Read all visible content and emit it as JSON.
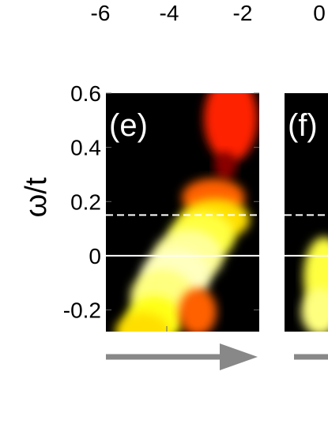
{
  "chart_data": [
    {
      "type": "heatmap",
      "panel_label": "(e)",
      "title": "",
      "xlabel": "",
      "ylabel": "ω/t",
      "x_ticks_top": [
        "-6",
        "-4",
        "-2"
      ],
      "y_ticks": [
        {
          "value": 0.6,
          "label": "0.6"
        },
        {
          "value": 0.4,
          "label": "0.4"
        },
        {
          "value": 0.2,
          "label": "0.2"
        },
        {
          "value": 0.0,
          "label": "0"
        },
        {
          "value": -0.2,
          "label": "-0.2"
        }
      ],
      "ylim": [
        -0.28,
        0.6
      ],
      "colormap": "hot",
      "reference_lines": [
        {
          "value": 0.15,
          "style": "dashed",
          "color": "#ffffff"
        },
        {
          "value": 0.0,
          "style": "solid",
          "color": "#ffffff"
        }
      ],
      "arrow": {
        "direction": "right",
        "color": "#888888"
      }
    },
    {
      "type": "heatmap",
      "panel_label": "(f)",
      "title": "",
      "x_ticks_top": [
        "0"
      ],
      "reference_lines": [
        {
          "value": 0.15,
          "style": "dashed",
          "color": "#ffffff"
        },
        {
          "value": 0.0,
          "style": "solid",
          "color": "#ffffff"
        }
      ],
      "arrow": {
        "direction": "right",
        "color": "#888888"
      }
    }
  ]
}
